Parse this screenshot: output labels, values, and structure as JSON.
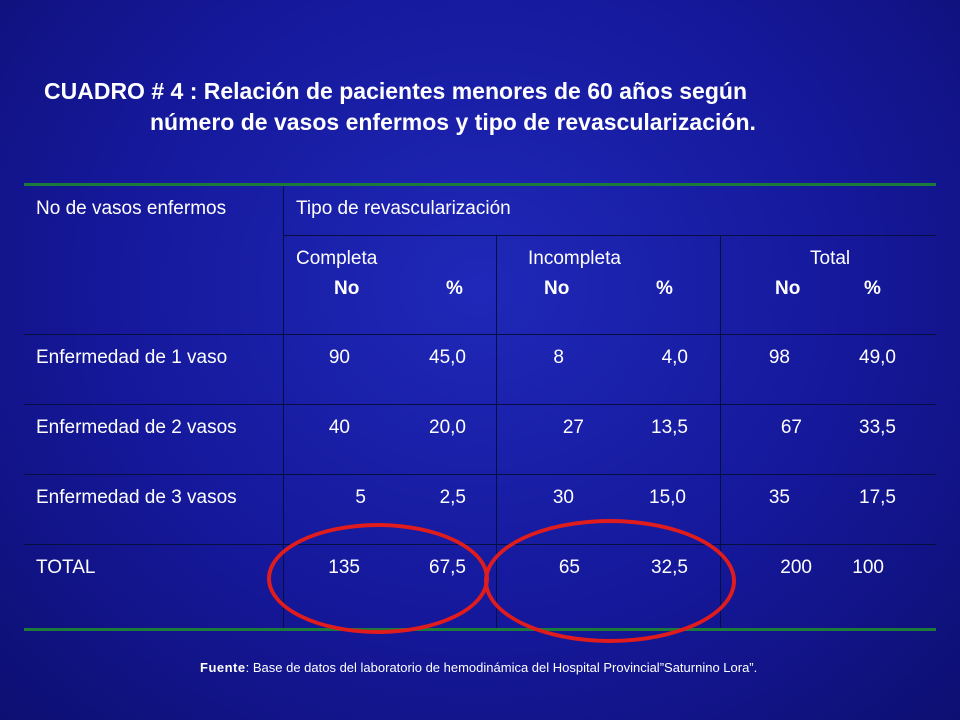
{
  "title": {
    "line1": "CUADRO # 4 : Relación de pacientes menores de 60 años según",
    "line2": "número de vasos enfermos y tipo de revascularización."
  },
  "table": {
    "col0_header": "No de vasos enfermos",
    "group_header": "Tipo de revascularización",
    "groups": [
      {
        "label": "Completa",
        "no": "No",
        "pct": "%"
      },
      {
        "label": "Incompleta",
        "no": "No",
        "pct": "%"
      },
      {
        "label": "Total",
        "no": "No",
        "pct": "%"
      }
    ],
    "rows": [
      {
        "label": "Enfermedad de 1 vaso",
        "values": [
          "90",
          "45,0",
          "8",
          "4,0",
          "98",
          "49,0"
        ]
      },
      {
        "label": "Enfermedad de 2 vasos",
        "values": [
          "40",
          "20,0",
          "27",
          "13,5",
          "67",
          "33,5"
        ]
      },
      {
        "label": "Enfermedad de 3 vasos",
        "values": [
          "5",
          "2,5",
          "30",
          "15,0",
          "35",
          "17,5"
        ]
      },
      {
        "label": "TOTAL",
        "values": [
          "135",
          "67,5",
          "65",
          "32,5",
          "200",
          "100"
        ]
      }
    ]
  },
  "source": {
    "label": "Fuente",
    "text": ": Base de datos del laboratorio de hemodinámica  del Hospital Provincial”Saturnino Lora”."
  }
}
